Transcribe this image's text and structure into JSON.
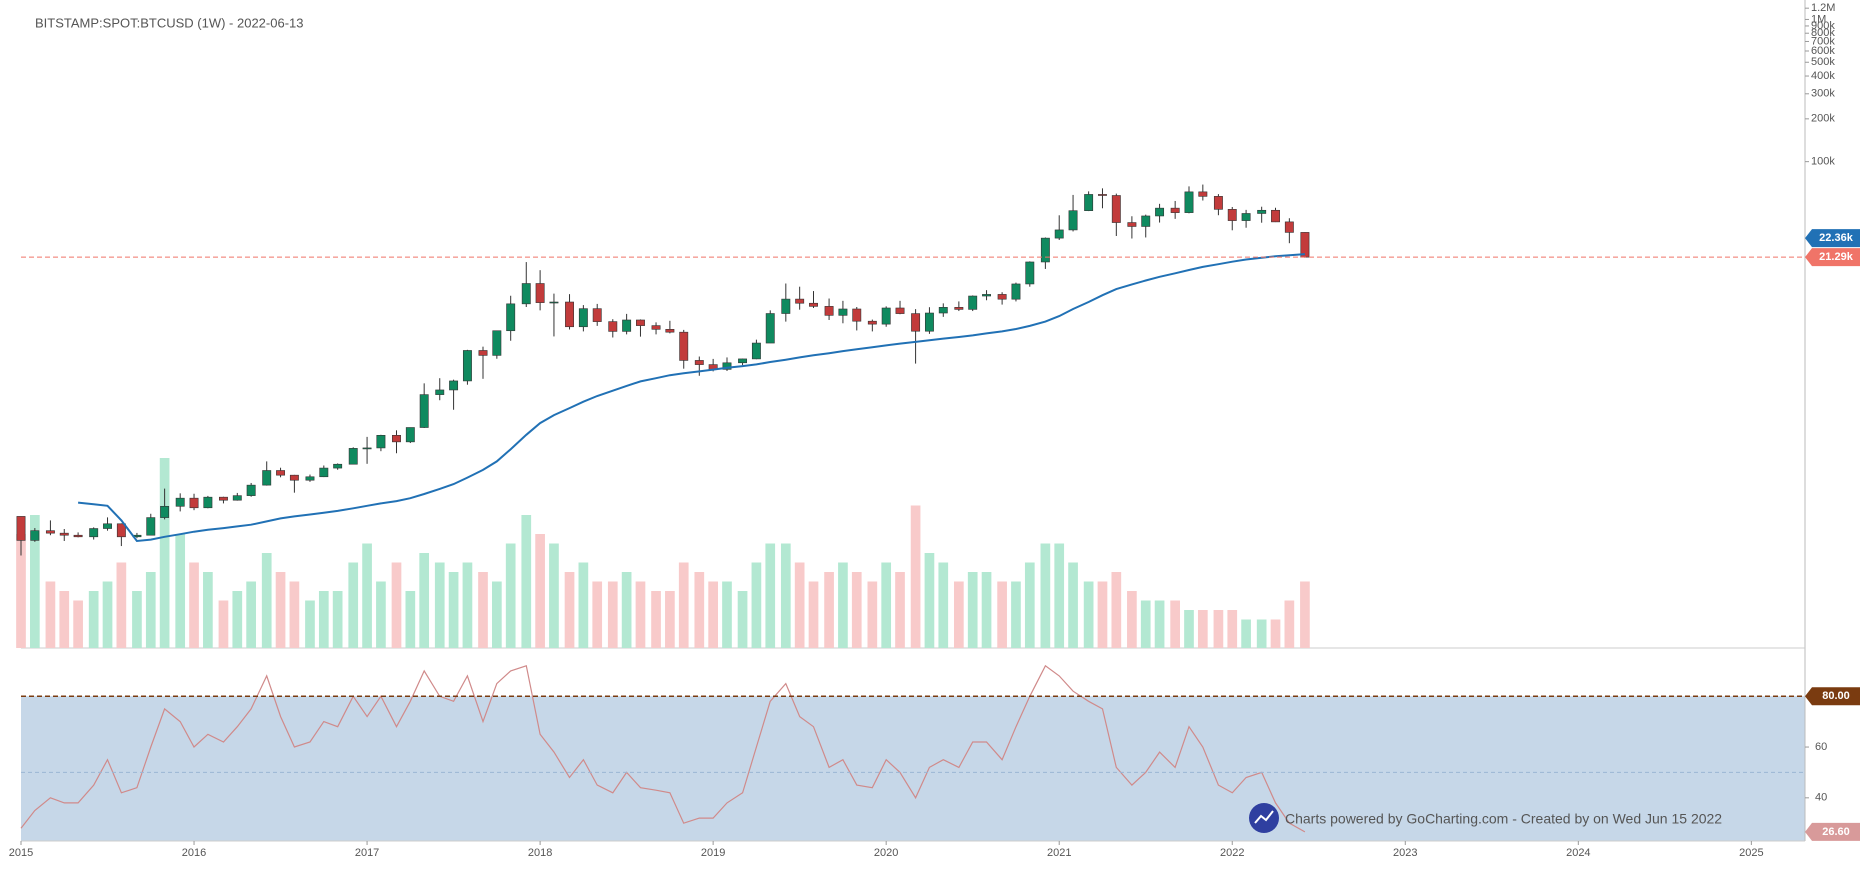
{
  "header": {
    "title": "BITSTAMP:SPOT:BTCUSD (1W) - 2022-06-13"
  },
  "watermark": {
    "text": "Charts powered by GoCharting.com - Created by  on Wed Jun 15 2022"
  },
  "chart_data": [
    {
      "type": "candlestick",
      "log_scale": true,
      "up_color": "#0f8a5f",
      "down_color": "#c23b3b",
      "xlim": [
        2015,
        2025.31
      ],
      "xticks": [
        2015,
        2016,
        2017,
        2018,
        2019,
        2020,
        2021,
        2022,
        2023,
        2024,
        2025
      ],
      "ylim": [
        38,
        1370000
      ],
      "yticks": [
        {
          "value": 100000,
          "label": "100k"
        },
        {
          "value": 200000,
          "label": "200k"
        },
        {
          "value": 300000,
          "label": "300k"
        },
        {
          "value": 400000,
          "label": "400k"
        },
        {
          "value": 500000,
          "label": "500k"
        },
        {
          "value": 600000,
          "label": "600k"
        },
        {
          "value": 700000,
          "label": "700k"
        },
        {
          "value": 800000,
          "label": "800k"
        },
        {
          "value": 900000,
          "label": "900k"
        },
        {
          "value": 1000000,
          "label": "1M"
        },
        {
          "value": 1200000,
          "label": "1.2M"
        }
      ],
      "x": [
        2015.0,
        2015.08,
        2015.17,
        2015.25,
        2015.33,
        2015.42,
        2015.5,
        2015.58,
        2015.67,
        2015.75,
        2015.83,
        2015.92,
        2016.0,
        2016.08,
        2016.17,
        2016.25,
        2016.33,
        2016.42,
        2016.5,
        2016.58,
        2016.67,
        2016.75,
        2016.83,
        2016.92,
        2017.0,
        2017.08,
        2017.17,
        2017.25,
        2017.33,
        2017.42,
        2017.5,
        2017.58,
        2017.67,
        2017.75,
        2017.83,
        2017.92,
        2018.0,
        2018.08,
        2018.17,
        2018.25,
        2018.33,
        2018.42,
        2018.5,
        2018.58,
        2018.67,
        2018.75,
        2018.83,
        2018.92,
        2019.0,
        2019.08,
        2019.17,
        2019.25,
        2019.33,
        2019.42,
        2019.5,
        2019.58,
        2019.67,
        2019.75,
        2019.83,
        2019.92,
        2020.0,
        2020.08,
        2020.17,
        2020.25,
        2020.33,
        2020.42,
        2020.5,
        2020.58,
        2020.67,
        2020.75,
        2020.83,
        2020.92,
        2021.0,
        2021.08,
        2021.17,
        2021.25,
        2021.33,
        2021.42,
        2021.5,
        2021.58,
        2021.67,
        2021.75,
        2021.83,
        2021.92,
        2022.0,
        2022.08,
        2022.17,
        2022.25,
        2022.33,
        2022.42
      ],
      "open": [
        320,
        217,
        254,
        244,
        236,
        230,
        263,
        284,
        230,
        236,
        314,
        377,
        430,
        368,
        437,
        416,
        448,
        531,
        673,
        624,
        575,
        608,
        700,
        745,
        963,
        970,
        1190,
        1070,
        1350,
        2300,
        2480,
        2870,
        4700,
        4340,
        6470,
        10000,
        13900,
        10200,
        10300,
        6900,
        9250,
        7500,
        6400,
        7700,
        7030,
        6620,
        6320,
        4000,
        3740,
        3460,
        3850,
        4100,
        5300,
        8550,
        10800,
        10100,
        9600,
        8300,
        9200,
        7550,
        7200,
        9350,
        8540,
        6420,
        8620,
        9450,
        9140,
        11350,
        11650,
        10780,
        13800,
        19700,
        28990,
        33100,
        45200,
        58800,
        57800,
        37300,
        35000,
        41500,
        47100,
        43800,
        61300,
        57000,
        46200,
        38500,
        43200,
        45500,
        37700,
        31800
      ],
      "high": [
        320,
        265,
        300,
        261,
        247,
        268,
        315,
        286,
        245,
        334,
        502,
        465,
        462,
        446,
        440,
        468,
        550,
        780,
        704,
        627,
        630,
        730,
        755,
        980,
        1160,
        1200,
        1290,
        1350,
        2760,
        3000,
        2930,
        4750,
        5000,
        6470,
        11400,
        19666,
        17250,
        11800,
        11700,
        9800,
        9990,
        7800,
        8500,
        7770,
        7410,
        7600,
        6560,
        4260,
        4100,
        4200,
        4120,
        5600,
        9000,
        13900,
        13200,
        12300,
        10900,
        10500,
        9500,
        7750,
        9600,
        10500,
        9180,
        9470,
        10080,
        10400,
        11460,
        12480,
        12070,
        14100,
        19900,
        29300,
        41950,
        58350,
        61800,
        64900,
        59600,
        41300,
        42400,
        50500,
        52900,
        67000,
        69000,
        59100,
        47990,
        45800,
        48200,
        47400,
        40000,
        31900
      ],
      "low": [
        170,
        212,
        236,
        215,
        228,
        220,
        254,
        198,
        225,
        236,
        305,
        347,
        354,
        365,
        395,
        413,
        440,
        527,
        603,
        470,
        560,
        605,
        681,
        742,
        750,
        920,
        890,
        1050,
        1340,
        2100,
        1800,
        2700,
        2970,
        4110,
        5500,
        9500,
        9000,
        5900,
        6600,
        6400,
        7000,
        5800,
        6100,
        5880,
        6100,
        6200,
        3500,
        3120,
        3350,
        3370,
        3700,
        4080,
        5300,
        7500,
        9100,
        9350,
        7700,
        7300,
        6500,
        6400,
        6900,
        8450,
        3800,
        6150,
        8100,
        8900,
        8900,
        10600,
        9880,
        10400,
        13200,
        17600,
        28130,
        32300,
        44900,
        47000,
        30000,
        28800,
        29300,
        37300,
        39600,
        43300,
        53300,
        42000,
        32900,
        34300,
        37200,
        37600,
        26700,
        21100
      ],
      "close": [
        217,
        254,
        244,
        236,
        230,
        263,
        284,
        230,
        236,
        314,
        377,
        430,
        368,
        437,
        416,
        448,
        531,
        673,
        624,
        575,
        608,
        700,
        745,
        963,
        970,
        1190,
        1070,
        1350,
        2300,
        2480,
        2870,
        4700,
        4340,
        6470,
        10000,
        13900,
        10200,
        10300,
        6900,
        9250,
        7500,
        6400,
        7700,
        7030,
        6620,
        6320,
        4000,
        3740,
        3460,
        3850,
        4100,
        5300,
        8550,
        10800,
        10100,
        9600,
        8300,
        9200,
        7550,
        7200,
        9350,
        8540,
        6420,
        8620,
        9450,
        9140,
        11350,
        11650,
        10780,
        13800,
        19700,
        28990,
        33100,
        45200,
        58800,
        57800,
        37300,
        35000,
        41500,
        47100,
        43800,
        61300,
        57000,
        46200,
        38500,
        43200,
        45500,
        37700,
        31800,
        21290
      ],
      "last_tag": {
        "value": 21290,
        "label": "21.29k",
        "color": "#f07468"
      },
      "moving_average": {
        "color": "#2171b5",
        "values": [
          null,
          null,
          null,
          null,
          400,
          390,
          380,
          300,
          215,
          220,
          230,
          240,
          250,
          258,
          265,
          272,
          280,
          295,
          310,
          320,
          330,
          340,
          350,
          365,
          380,
          395,
          410,
          430,
          460,
          500,
          540,
          600,
          680,
          780,
          950,
          1200,
          1450,
          1650,
          1850,
          2050,
          2250,
          2450,
          2650,
          2850,
          3000,
          3150,
          3250,
          3350,
          3450,
          3550,
          3650,
          3750,
          3900,
          4050,
          4200,
          4350,
          4500,
          4650,
          4800,
          4950,
          5100,
          5250,
          5400,
          5550,
          5700,
          5850,
          6000,
          6200,
          6400,
          6650,
          7000,
          7500,
          8200,
          9200,
          10300,
          11500,
          12700,
          13700,
          14600,
          15500,
          16400,
          17300,
          18200,
          19000,
          19800,
          20500,
          21100,
          21600,
          22000,
          22360
        ],
        "last_tag": {
          "value": 22360,
          "label": "22.36k"
        }
      },
      "volume": {
        "up_color": "#b3e8d2",
        "down_color": "#f8caca",
        "values": [
          60,
          70,
          35,
          30,
          25,
          30,
          35,
          45,
          30,
          40,
          100,
          60,
          45,
          40,
          25,
          30,
          35,
          50,
          40,
          35,
          25,
          30,
          30,
          45,
          55,
          35,
          45,
          30,
          50,
          45,
          40,
          45,
          40,
          35,
          55,
          70,
          60,
          55,
          40,
          45,
          35,
          35,
          40,
          35,
          30,
          30,
          45,
          40,
          35,
          35,
          30,
          45,
          55,
          55,
          45,
          35,
          40,
          45,
          40,
          35,
          45,
          40,
          75,
          50,
          45,
          35,
          40,
          40,
          35,
          35,
          45,
          55,
          55,
          45,
          35,
          35,
          40,
          30,
          25,
          25,
          25,
          20,
          20,
          20,
          20,
          15,
          15,
          15,
          25,
          35
        ]
      }
    },
    {
      "type": "line",
      "color": "#d08a8a",
      "fill_color": "#c6d7e8",
      "ylim": [
        23,
        99
      ],
      "yticks": [
        40,
        60
      ],
      "midline": 50,
      "overbought": {
        "value": 80,
        "label": "80.00",
        "color": "#7a3b10"
      },
      "values": [
        28,
        35,
        40,
        38,
        38,
        45,
        55,
        42,
        44,
        60,
        75,
        70,
        60,
        65,
        62,
        68,
        75,
        88,
        72,
        60,
        62,
        70,
        68,
        80,
        72,
        80,
        68,
        78,
        90,
        80,
        78,
        88,
        70,
        85,
        90,
        92,
        65,
        58,
        48,
        55,
        45,
        42,
        50,
        44,
        43,
        42,
        30,
        32,
        32,
        38,
        42,
        60,
        78,
        85,
        72,
        68,
        52,
        55,
        45,
        44,
        55,
        50,
        40,
        52,
        55,
        52,
        62,
        62,
        55,
        68,
        80,
        92,
        88,
        82,
        78,
        75,
        52,
        45,
        50,
        58,
        52,
        68,
        60,
        45,
        42,
        48,
        50,
        38,
        30,
        26.6
      ],
      "last_tag": {
        "value": 26.6,
        "label": "26.60",
        "color": "#d89a9a"
      }
    }
  ]
}
